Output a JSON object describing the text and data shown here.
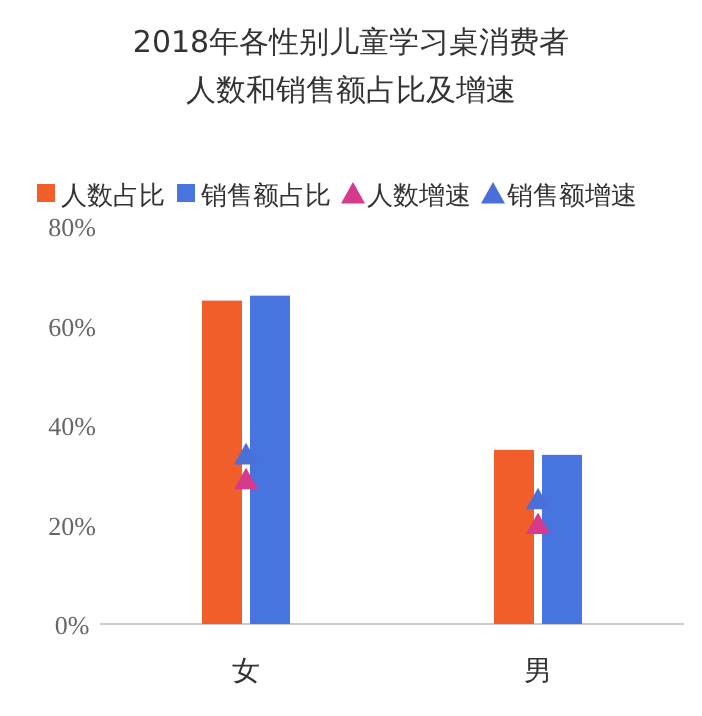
{
  "chart_data": {
    "type": "bar",
    "title": "2018年各性别儿童学习桌消费者",
    "subtitle": "人数和销售额占比及增速",
    "categories": [
      "女",
      "男"
    ],
    "series": [
      {
        "name": "人数占比",
        "color": "#f25e2a",
        "values": [
          65,
          35
        ]
      },
      {
        "name": "销售额占比",
        "color": "#4874e0",
        "values": [
          66,
          34
        ]
      },
      {
        "name": "人数增速",
        "type": "scatter",
        "marker": "triangle",
        "color": "#d63a8c",
        "values": [
          29,
          20
        ]
      },
      {
        "name": "销售额增速",
        "type": "scatter",
        "marker": "triangle",
        "color": "#4a6fd8",
        "values": [
          34,
          25
        ]
      }
    ],
    "ylim": [
      0,
      80
    ],
    "yticks": [
      {
        "value": 0,
        "label": "0%"
      },
      {
        "value": 20,
        "label": "20%"
      },
      {
        "value": 40,
        "label": "40%"
      },
      {
        "value": 60,
        "label": "60%"
      },
      {
        "value": 80,
        "label": "80%"
      }
    ],
    "legend": "top",
    "grid": false
  }
}
